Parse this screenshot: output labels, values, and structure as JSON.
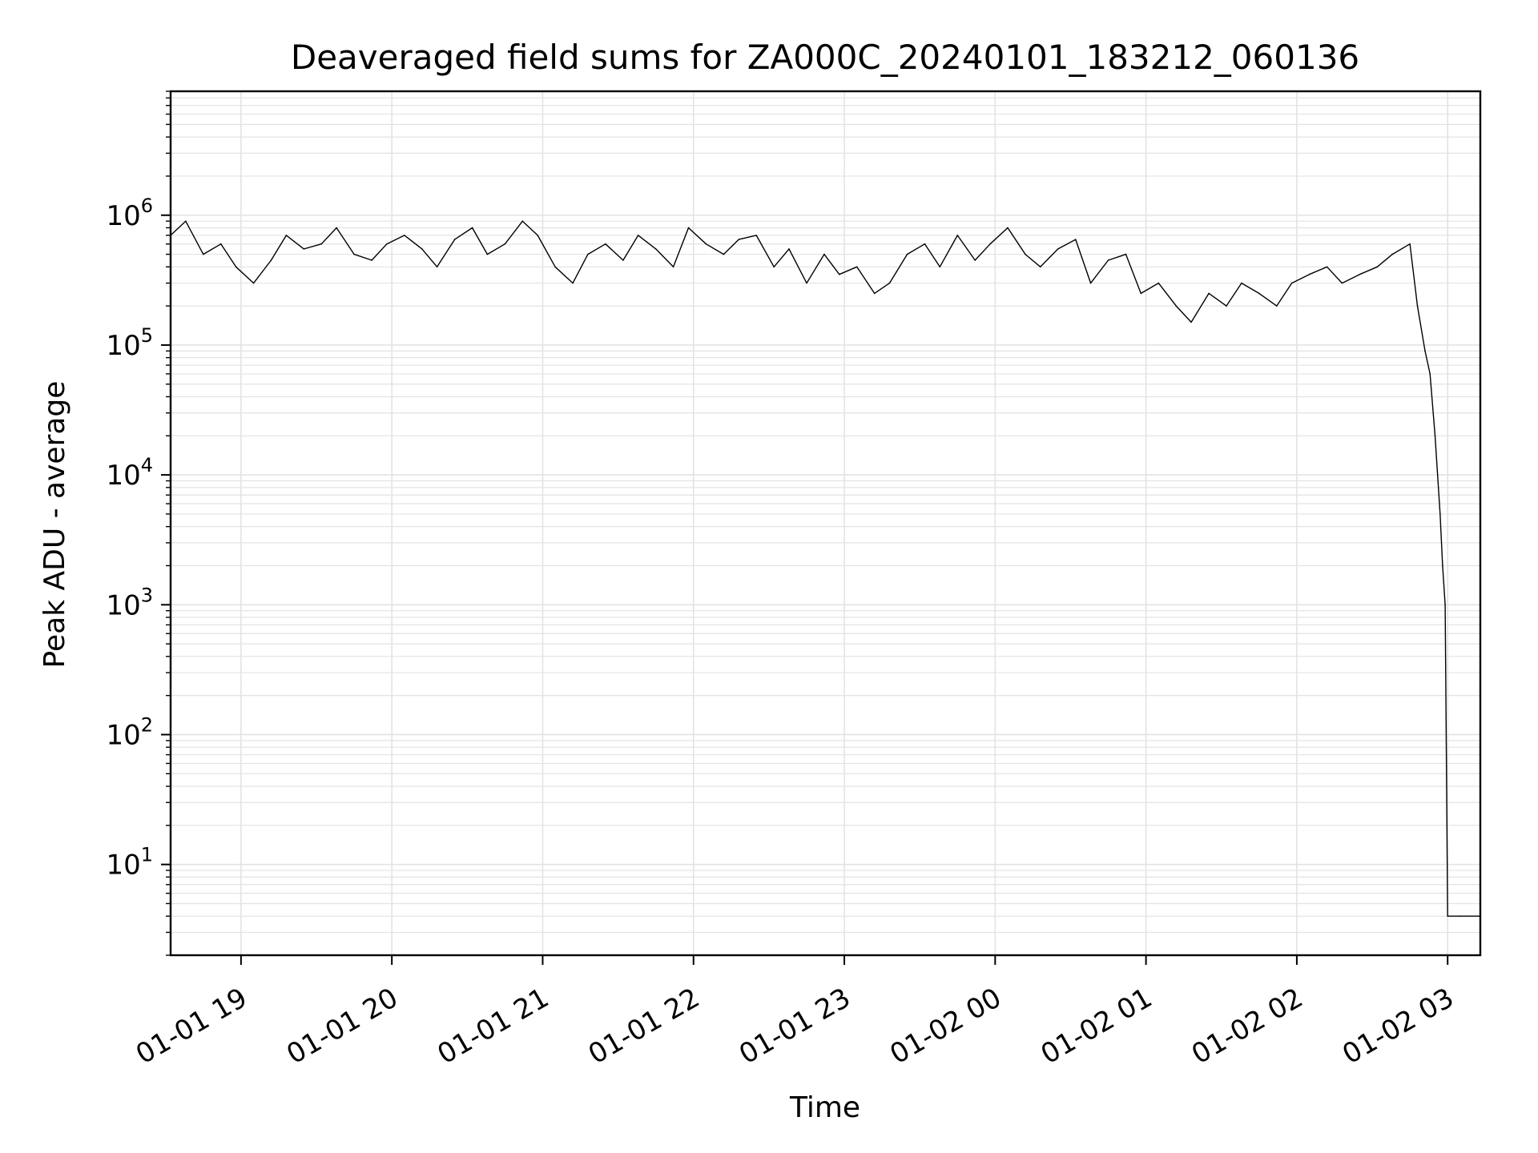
{
  "chart_data": {
    "type": "line",
    "title": "Deaveraged field sums for ZA000C_20240101_183212_060136",
    "xlabel": "Time",
    "ylabel": "Peak ADU - average",
    "yscale": "log",
    "ylim": [
      2,
      9000000
    ],
    "xlim": [
      "2024-01-01 18:32",
      "2024-01-02 03:13"
    ],
    "grid": true,
    "line_color": "#000000",
    "x_ticks": [
      {
        "t": "2024-01-01 19:00",
        "label": "01-01 19"
      },
      {
        "t": "2024-01-01 20:00",
        "label": "01-01 20"
      },
      {
        "t": "2024-01-01 21:00",
        "label": "01-01 21"
      },
      {
        "t": "2024-01-01 22:00",
        "label": "01-01 22"
      },
      {
        "t": "2024-01-01 23:00",
        "label": "01-01 23"
      },
      {
        "t": "2024-01-02 00:00",
        "label": "01-02 00"
      },
      {
        "t": "2024-01-02 01:00",
        "label": "01-02 01"
      },
      {
        "t": "2024-01-02 02:00",
        "label": "01-02 02"
      },
      {
        "t": "2024-01-02 03:00",
        "label": "01-02 03"
      }
    ],
    "y_ticks": [
      {
        "value": 10,
        "base": "10",
        "exp": "1"
      },
      {
        "value": 100,
        "base": "10",
        "exp": "2"
      },
      {
        "value": 1000,
        "base": "10",
        "exp": "3"
      },
      {
        "value": 10000,
        "base": "10",
        "exp": "4"
      },
      {
        "value": 100000,
        "base": "10",
        "exp": "5"
      },
      {
        "value": 1000000,
        "base": "10",
        "exp": "6"
      }
    ],
    "series": [
      {
        "x": [
          "2024-01-01 18:32",
          "2024-01-01 18:38",
          "2024-01-01 18:45",
          "2024-01-01 18:52",
          "2024-01-01 18:58",
          "2024-01-01 19:05",
          "2024-01-01 19:12",
          "2024-01-01 19:18",
          "2024-01-01 19:25",
          "2024-01-01 19:32",
          "2024-01-01 19:38",
          "2024-01-01 19:45",
          "2024-01-01 19:52",
          "2024-01-01 19:58",
          "2024-01-01 20:05",
          "2024-01-01 20:12",
          "2024-01-01 20:18",
          "2024-01-01 20:25",
          "2024-01-01 20:32",
          "2024-01-01 20:38",
          "2024-01-01 20:45",
          "2024-01-01 20:52",
          "2024-01-01 20:58",
          "2024-01-01 21:05",
          "2024-01-01 21:12",
          "2024-01-01 21:18",
          "2024-01-01 21:25",
          "2024-01-01 21:32",
          "2024-01-01 21:38",
          "2024-01-01 21:45",
          "2024-01-01 21:52",
          "2024-01-01 21:58",
          "2024-01-01 22:05",
          "2024-01-01 22:12",
          "2024-01-01 22:18",
          "2024-01-01 22:25",
          "2024-01-01 22:32",
          "2024-01-01 22:38",
          "2024-01-01 22:45",
          "2024-01-01 22:52",
          "2024-01-01 22:58",
          "2024-01-01 23:05",
          "2024-01-01 23:12",
          "2024-01-01 23:18",
          "2024-01-01 23:25",
          "2024-01-01 23:32",
          "2024-01-01 23:38",
          "2024-01-01 23:45",
          "2024-01-01 23:52",
          "2024-01-01 23:58",
          "2024-01-02 00:05",
          "2024-01-02 00:12",
          "2024-01-02 00:18",
          "2024-01-02 00:25",
          "2024-01-02 00:32",
          "2024-01-02 00:38",
          "2024-01-02 00:45",
          "2024-01-02 00:52",
          "2024-01-02 00:58",
          "2024-01-02 01:05",
          "2024-01-02 01:12",
          "2024-01-02 01:18",
          "2024-01-02 01:25",
          "2024-01-02 01:32",
          "2024-01-02 01:38",
          "2024-01-02 01:45",
          "2024-01-02 01:52",
          "2024-01-02 01:58",
          "2024-01-02 02:05",
          "2024-01-02 02:12",
          "2024-01-02 02:18",
          "2024-01-02 02:25",
          "2024-01-02 02:32",
          "2024-01-02 02:38",
          "2024-01-02 02:45",
          "2024-01-02 02:48",
          "2024-01-02 02:51",
          "2024-01-02 02:53",
          "2024-01-02 02:55",
          "2024-01-02 02:57",
          "2024-01-02 02:58",
          "2024-01-02 02:59",
          "2024-01-02 03:00",
          "2024-01-02 03:05",
          "2024-01-02 03:13"
        ],
        "values": [
          700000,
          900000,
          500000,
          600000,
          400000,
          300000,
          450000,
          700000,
          550000,
          600000,
          800000,
          500000,
          450000,
          600000,
          700000,
          550000,
          400000,
          650000,
          800000,
          500000,
          600000,
          900000,
          700000,
          400000,
          300000,
          500000,
          600000,
          450000,
          700000,
          550000,
          400000,
          800000,
          600000,
          500000,
          650000,
          700000,
          400000,
          550000,
          300000,
          500000,
          350000,
          400000,
          250000,
          300000,
          500000,
          600000,
          400000,
          700000,
          450000,
          600000,
          800000,
          500000,
          400000,
          550000,
          650000,
          300000,
          450000,
          500000,
          250000,
          300000,
          200000,
          150000,
          250000,
          200000,
          300000,
          250000,
          200000,
          300000,
          350000,
          400000,
          300000,
          350000,
          400000,
          500000,
          600000,
          200000,
          90000,
          60000,
          20000,
          5000,
          2000,
          1000,
          4,
          4,
          4
        ]
      }
    ]
  }
}
